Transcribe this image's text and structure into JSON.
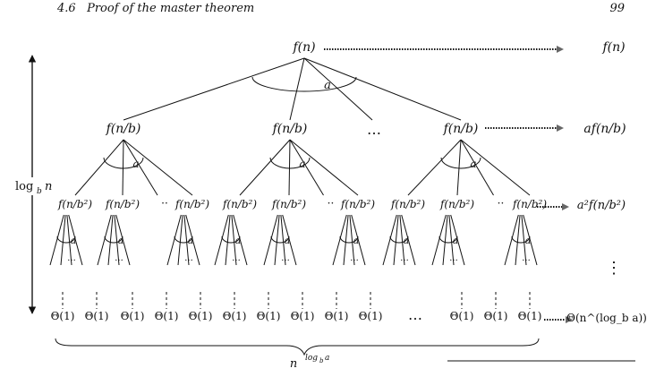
{
  "header": {
    "section_number": "4.6",
    "section_title": "Proof of the master theorem",
    "page_number": "99"
  },
  "figure": {
    "root": "f(n)",
    "branch_label": "a",
    "level1_node": "f(n/b)",
    "level2_node": "f(n/b²)",
    "leaf": "Θ(1)",
    "ellipsis": "…",
    "vertical_ellipsis": "⋮",
    "height_label": "log_b n",
    "width_label": "n^(log_b a)",
    "level_costs": [
      "f(n)",
      "af(n/b)",
      "a²f(n/b²)",
      "⋮",
      "Θ(n^(log_b a))"
    ]
  }
}
